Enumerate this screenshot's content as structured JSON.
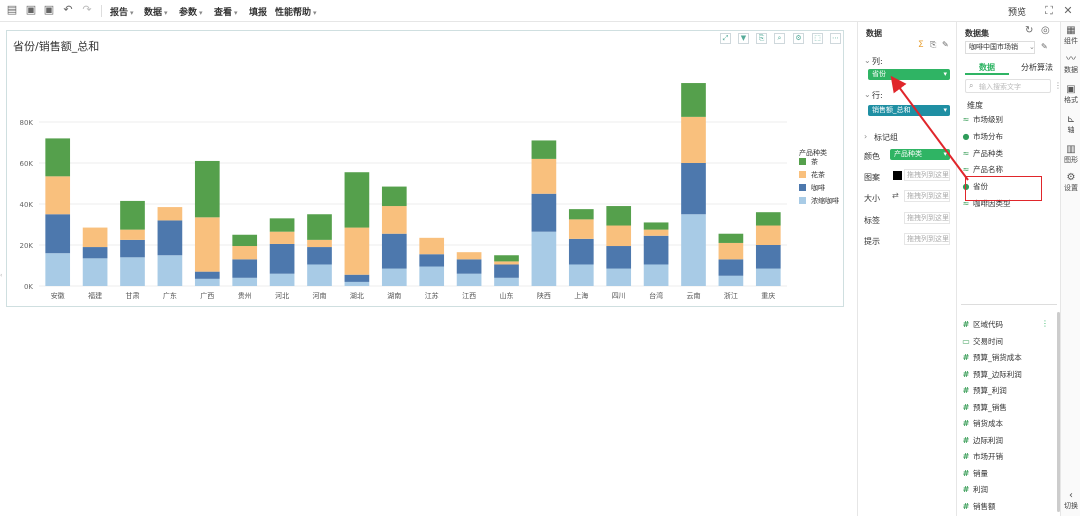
{
  "toolbar": {
    "menus": [
      "报告",
      "数据",
      "参数",
      "查看",
      "填报",
      "性能帮助"
    ],
    "right": [
      "预览"
    ]
  },
  "chart": {
    "title": "省份/销售额_总和"
  },
  "chart_data": {
    "type": "bar",
    "stacked": true,
    "title": "省份/销售额_总和",
    "xlabel": "",
    "ylabel": "",
    "ylim": [
      0,
      100000
    ],
    "y_ticks": [
      "0K",
      "20K",
      "40K",
      "60K",
      "80K"
    ],
    "y_tick_values": [
      0,
      20000,
      40000,
      60000,
      80000
    ],
    "categories": [
      "安徽",
      "福建",
      "甘肃",
      "广东",
      "广西",
      "贵州",
      "河北",
      "河南",
      "湖北",
      "湖南",
      "江苏",
      "江西",
      "山东",
      "陕西",
      "上海",
      "四川",
      "台湾",
      "云南",
      "浙江",
      "重庆"
    ],
    "legend_title": "产品种类",
    "legend_position": "right",
    "series": [
      {
        "name": "浓缩咖啡",
        "color": "#a8cbe6",
        "values": [
          16000,
          13500,
          14000,
          15000,
          3500,
          4000,
          6000,
          10500,
          2000,
          8500,
          9500,
          6000,
          4000,
          26500,
          10500,
          8500,
          10500,
          35000,
          5000,
          8500
        ]
      },
      {
        "name": "咖啡",
        "color": "#4d78ad",
        "values": [
          19000,
          5500,
          8500,
          17000,
          3500,
          9000,
          14500,
          8500,
          3500,
          17000,
          6000,
          7000,
          6500,
          18500,
          12500,
          11000,
          14000,
          25000,
          8000,
          11500
        ]
      },
      {
        "name": "花茶",
        "color": "#f9c07d",
        "values": [
          18500,
          9500,
          5000,
          6500,
          26500,
          6500,
          6000,
          3500,
          23000,
          13500,
          8000,
          3500,
          1500,
          17000,
          9500,
          10000,
          3000,
          22500,
          8000,
          9500
        ]
      },
      {
        "name": "茶",
        "color": "#55a04c",
        "values": [
          18500,
          0,
          14000,
          0,
          27500,
          5500,
          6500,
          12500,
          27000,
          9500,
          0,
          0,
          3000,
          9000,
          5000,
          9500,
          3500,
          16500,
          4500,
          6500
        ]
      }
    ]
  },
  "data_panel": {
    "title": "数据",
    "columns_label": "列:",
    "columns_field": "省份",
    "rows_label": "行:",
    "rows_field": "销售额_总和",
    "marks_label": "标记组",
    "color_label": "颜色",
    "color_field": "产品种类",
    "shape_label": "图案",
    "shape_hint": "拖拽列到这里",
    "size_label": "大小",
    "size_hint": "拖拽列到这里",
    "label_label": "标签",
    "label_hint": "拖拽列到这里",
    "tooltip_label": "提示",
    "tooltip_hint": "拖拽列到这里",
    "colors": {
      "green": "#2fb464",
      "teal": "#1f8fa3"
    }
  },
  "dataset_panel": {
    "title": "数据集",
    "dataset_name": "咖啡中国市场销",
    "tabs": [
      "数据",
      "分析算法"
    ],
    "search_placeholder": "输入搜索文字",
    "dimension_header": "维度",
    "dimensions": [
      {
        "label": "市场级别",
        "icon": "dimension-icon"
      },
      {
        "label": "市场分布",
        "icon": "globe-icon"
      },
      {
        "label": "产品种类",
        "icon": "dimension-icon"
      },
      {
        "label": "产品名称",
        "icon": "dimension-icon"
      },
      {
        "label": "省份",
        "icon": "globe-icon"
      },
      {
        "label": "咖啡因类型",
        "icon": "dimension-icon"
      }
    ],
    "measures": [
      {
        "label": "区域代码",
        "icon": "hash-icon"
      },
      {
        "label": "交易时间",
        "icon": "calendar-icon"
      },
      {
        "label": "预算_销货成本",
        "icon": "hash-icon"
      },
      {
        "label": "预算_边际利润",
        "icon": "hash-icon"
      },
      {
        "label": "预算_利润",
        "icon": "hash-icon"
      },
      {
        "label": "预算_销售",
        "icon": "hash-icon"
      },
      {
        "label": "销货成本",
        "icon": "hash-icon"
      },
      {
        "label": "边际利润",
        "icon": "hash-icon"
      },
      {
        "label": "市场开销",
        "icon": "hash-icon"
      },
      {
        "label": "销量",
        "icon": "hash-icon"
      },
      {
        "label": "利润",
        "icon": "hash-icon"
      },
      {
        "label": "销售额",
        "icon": "hash-icon"
      }
    ]
  },
  "rail": {
    "items": [
      "组件",
      "数据",
      "格式",
      "轴",
      "图形",
      "设置"
    ],
    "bottom": "切换"
  }
}
